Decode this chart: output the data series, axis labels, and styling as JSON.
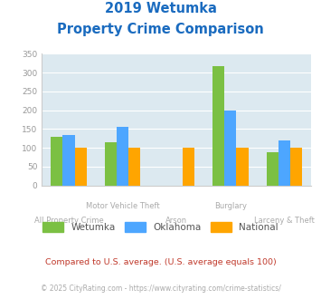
{
  "title_line1": "2019 Wetumka",
  "title_line2": "Property Crime Comparison",
  "title_color": "#1a6bbf",
  "categories": [
    "All Property Crime",
    "Motor Vehicle Theft",
    "Arson",
    "Burglary",
    "Larceny & Theft"
  ],
  "wetumka": [
    128,
    115,
    0,
    318,
    88
  ],
  "oklahoma": [
    135,
    155,
    0,
    198,
    120
  ],
  "national": [
    100,
    100,
    100,
    100,
    100
  ],
  "wetumka_color": "#7bc043",
  "oklahoma_color": "#4da6ff",
  "national_color": "#ffa500",
  "bg_color": "#dce9f0",
  "ylim": [
    0,
    350
  ],
  "yticks": [
    0,
    50,
    100,
    150,
    200,
    250,
    300,
    350
  ],
  "legend_labels": [
    "Wetumka",
    "Oklahoma",
    "National"
  ],
  "footnote1": "Compared to U.S. average. (U.S. average equals 100)",
  "footnote2": "© 2025 CityRating.com - https://www.cityrating.com/crime-statistics/",
  "footnote1_color": "#c0392b",
  "footnote2_color": "#aaaaaa",
  "xlabel_color": "#aaaaaa",
  "grid_color": "#ffffff",
  "bar_width": 0.22
}
